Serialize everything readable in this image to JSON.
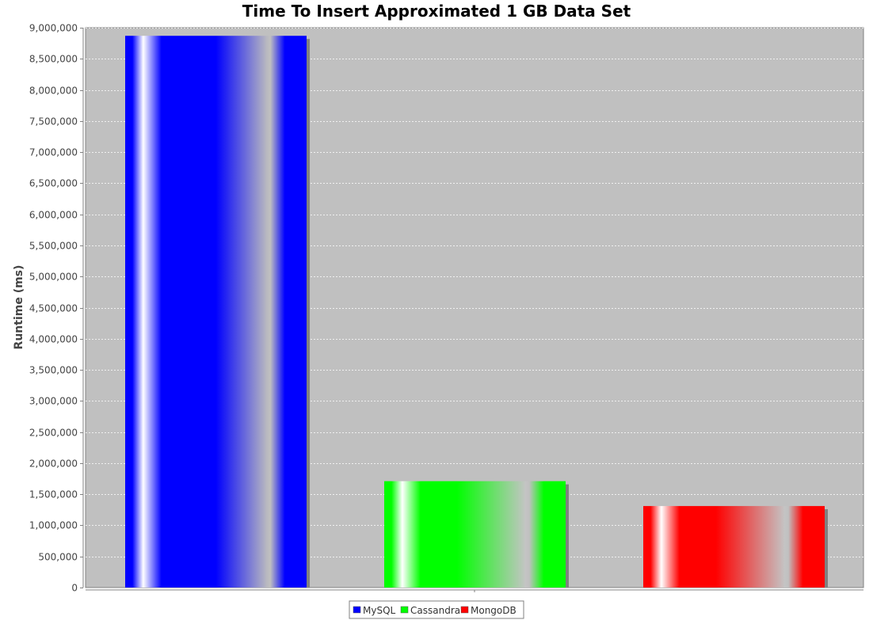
{
  "chart_data": {
    "type": "bar",
    "title": "Time To Insert Approximated 1 GB Data Set",
    "xlabel": "",
    "ylabel": "Runtime (ms)",
    "ylim": [
      0,
      9000000
    ],
    "ytick_step": 500000,
    "grid": true,
    "legend_position": "bottom-center",
    "series": [
      {
        "name": "MySQL",
        "value": 8870000,
        "color": "#0000ff"
      },
      {
        "name": "Cassandra",
        "value": 1710000,
        "color": "#00ff00"
      },
      {
        "name": "MongoDB",
        "value": 1310000,
        "color": "#ff0000"
      }
    ],
    "plot_background": "#c0c0c0"
  }
}
